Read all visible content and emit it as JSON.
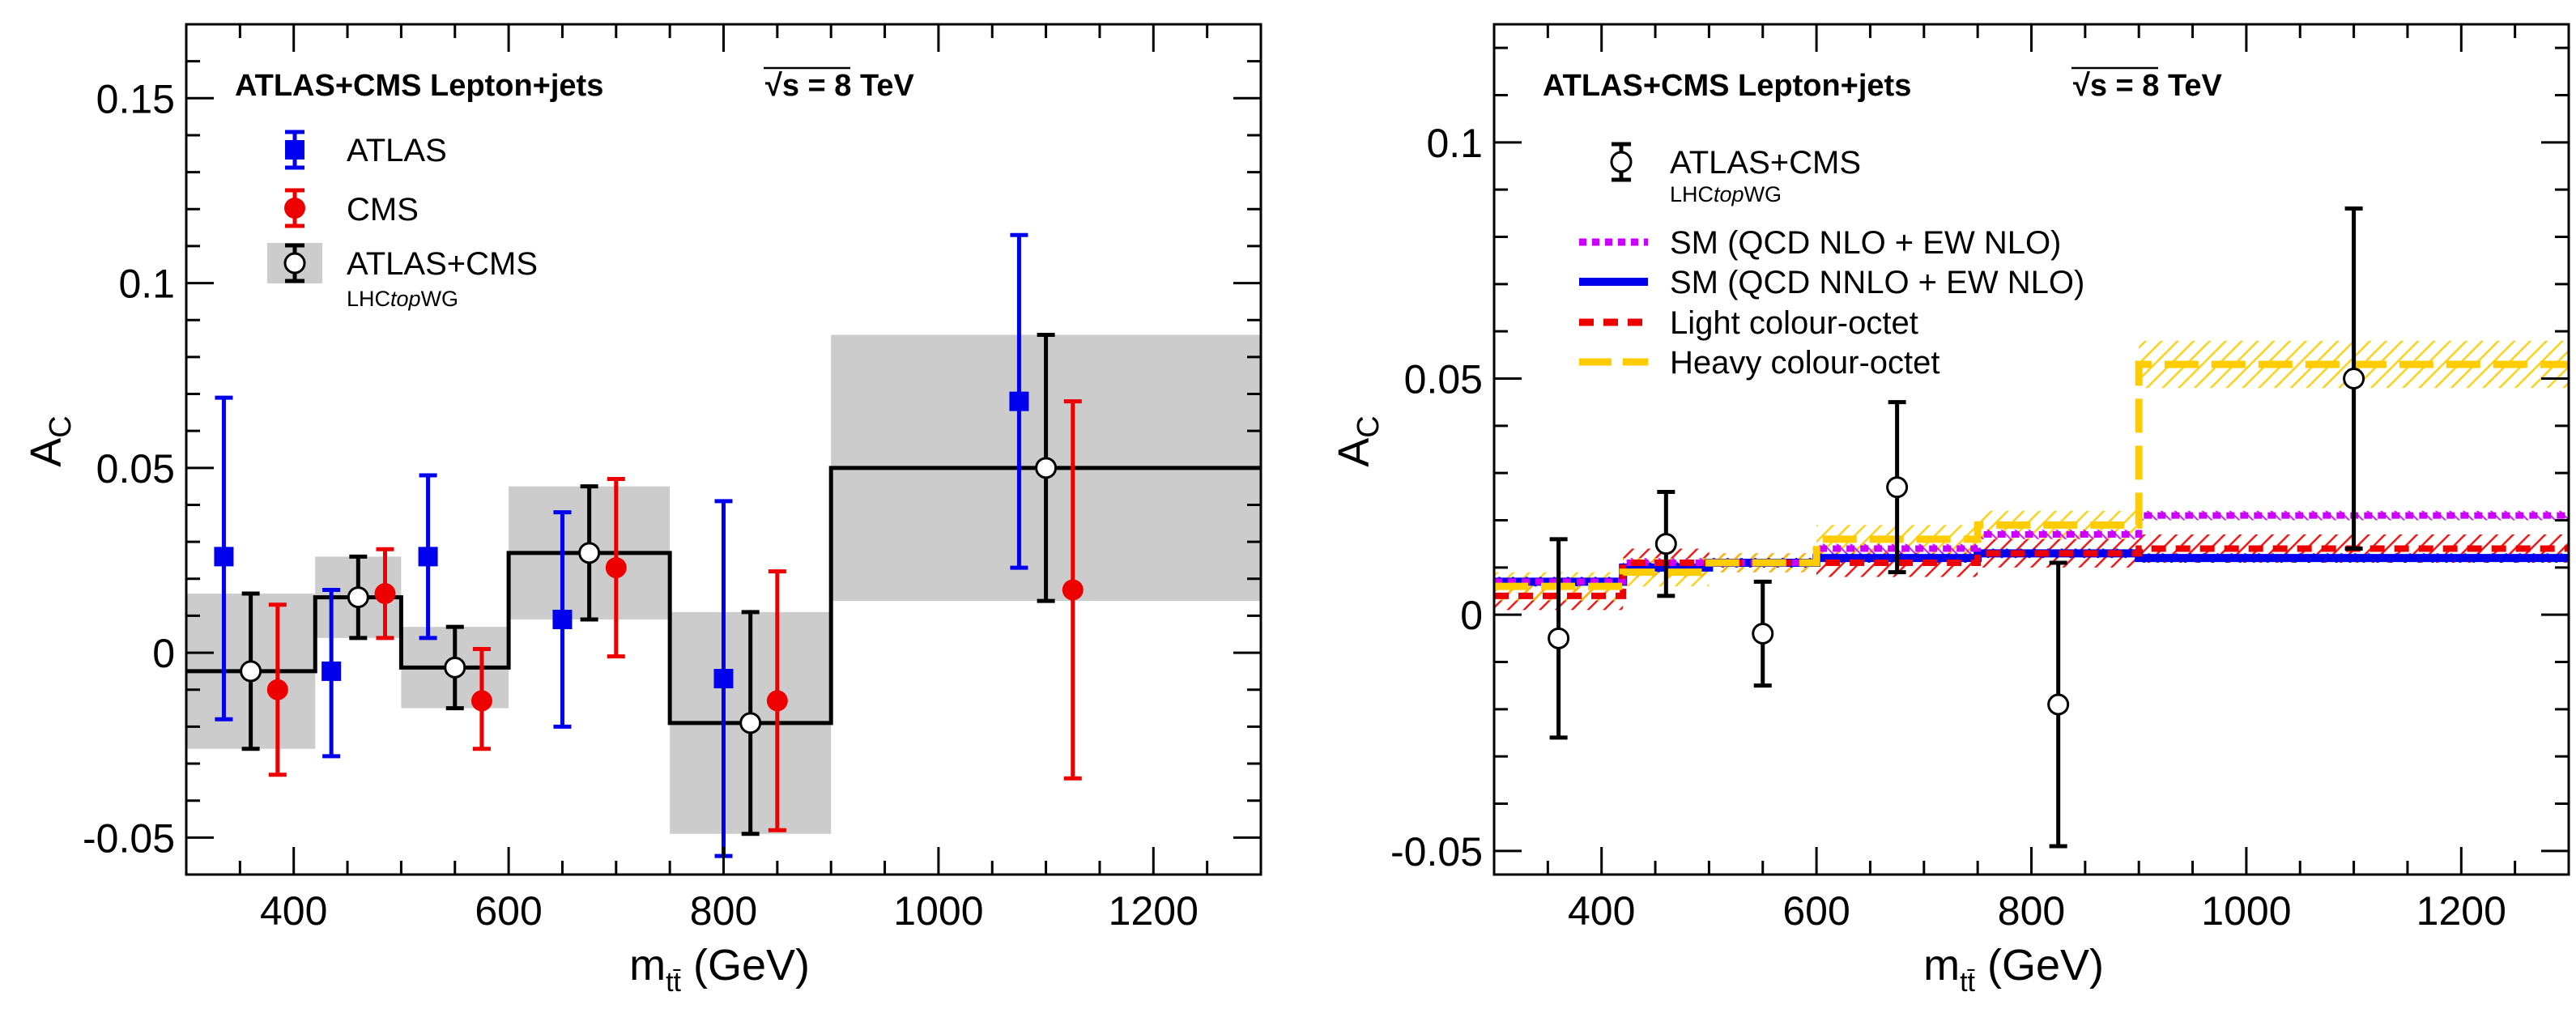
{
  "chart_data": [
    {
      "type": "scatter",
      "header": "ATLAS+CMS Lepton+jets",
      "energy": "√s = 8 TeV",
      "xlabel": "m",
      "xlabel_sub": "tt̄",
      "xlabel_unit": " (GeV)",
      "ylabel": "A",
      "ylabel_sub": "C",
      "xlim": [
        300,
        1300
      ],
      "ylim": [
        -0.06,
        0.17
      ],
      "xticks": [
        400,
        600,
        800,
        1000,
        1200
      ],
      "xtick_labels": [
        "400",
        "600",
        "800",
        "1000",
        "1200"
      ],
      "yticks": [
        -0.05,
        0,
        0.05,
        0.1,
        0.15
      ],
      "ytick_labels": [
        "-0.05",
        "0",
        "0.05",
        "0.1",
        "0.15"
      ],
      "bins": [
        {
          "lo": 300,
          "hi": 420,
          "value": -0.005,
          "band_lo": -0.026,
          "band_hi": 0.016
        },
        {
          "lo": 420,
          "hi": 500,
          "value": 0.015,
          "band_lo": 0.004,
          "band_hi": 0.026
        },
        {
          "lo": 500,
          "hi": 600,
          "value": -0.004,
          "band_lo": -0.015,
          "band_hi": 0.007
        },
        {
          "lo": 600,
          "hi": 750,
          "value": 0.027,
          "band_lo": 0.009,
          "band_hi": 0.045
        },
        {
          "lo": 750,
          "hi": 900,
          "value": -0.019,
          "band_lo": -0.049,
          "band_hi": 0.011
        },
        {
          "lo": 900,
          "hi": 1300,
          "value": 0.05,
          "band_lo": 0.014,
          "band_hi": 0.086
        }
      ],
      "series": [
        {
          "name": "ATLAS",
          "color": "#0000ee",
          "marker": "square",
          "x": [
            335,
            435,
            525,
            650,
            800,
            1075
          ],
          "y": [
            0.026,
            -0.005,
            0.026,
            0.009,
            -0.007,
            0.068
          ],
          "err_lo": [
            0.044,
            0.023,
            0.022,
            0.029,
            0.048,
            0.045
          ],
          "err_hi": [
            0.043,
            0.022,
            0.022,
            0.029,
            0.048,
            0.045
          ]
        },
        {
          "name": "CMS",
          "color": "#ee0000",
          "marker": "circle",
          "x": [
            385,
            485,
            575,
            700,
            850,
            1125
          ],
          "y": [
            -0.01,
            0.016,
            -0.013,
            0.023,
            -0.013,
            0.017
          ],
          "err_lo": [
            0.023,
            0.012,
            0.013,
            0.024,
            0.035,
            0.051
          ],
          "err_hi": [
            0.023,
            0.012,
            0.014,
            0.024,
            0.035,
            0.051
          ]
        },
        {
          "name": "ATLAS+CMS",
          "subname": "LHCtopWG",
          "color": "#000000",
          "marker": "open-circle",
          "x": [
            360,
            460,
            550,
            675,
            825,
            1100
          ],
          "y": [
            -0.005,
            0.015,
            -0.004,
            0.027,
            -0.019,
            0.05
          ],
          "err_lo": [
            0.021,
            0.011,
            0.011,
            0.018,
            0.03,
            0.036
          ],
          "err_hi": [
            0.021,
            0.011,
            0.011,
            0.018,
            0.03,
            0.036
          ]
        }
      ],
      "legend": [
        {
          "label": "ATLAS",
          "sub": ""
        },
        {
          "label": "CMS",
          "sub": ""
        },
        {
          "label": "ATLAS+CMS",
          "sub_pre": "LHC",
          "sub_it": "top",
          "sub_post": "WG"
        }
      ]
    },
    {
      "type": "scatter",
      "header": "ATLAS+CMS Lepton+jets",
      "energy": "√s = 8 TeV",
      "xlabel": "m",
      "xlabel_sub": "tt̄",
      "xlabel_unit": " (GeV)",
      "ylabel": "A",
      "ylabel_sub": "C",
      "xlim": [
        300,
        1300
      ],
      "ylim": [
        -0.055,
        0.125
      ],
      "xticks": [
        400,
        600,
        800,
        1000,
        1200
      ],
      "xtick_labels": [
        "400",
        "600",
        "800",
        "1000",
        "1200"
      ],
      "yticks": [
        -0.05,
        0,
        0.05,
        0.1
      ],
      "ytick_labels": [
        "-0.05",
        "0",
        "0.05",
        "0.1"
      ],
      "bin_edges": [
        300,
        420,
        500,
        600,
        750,
        900,
        1300
      ],
      "data": {
        "name": "ATLAS+CMS",
        "subname": "LHCtopWG",
        "x": [
          360,
          460,
          550,
          675,
          825,
          1100
        ],
        "y": [
          -0.005,
          0.015,
          -0.004,
          0.027,
          -0.019,
          0.05
        ],
        "err_lo": [
          0.021,
          0.011,
          0.011,
          0.018,
          0.03,
          0.036
        ],
        "err_hi": [
          0.021,
          0.011,
          0.011,
          0.018,
          0.03,
          0.036
        ]
      },
      "predictions": [
        {
          "name": "SM (QCD NLO + EW NLO)",
          "color": "#cc00ff",
          "style": "dotted",
          "values": [
            0.007,
            0.011,
            0.011,
            0.014,
            0.017,
            0.021
          ],
          "band": [
            0.001,
            0.001,
            0.001,
            0.001,
            0.001,
            0.001
          ]
        },
        {
          "name": "SM (QCD NNLO + EW NLO)",
          "color": "#0000ee",
          "style": "solid",
          "values": [
            0.007,
            0.01,
            0.011,
            0.012,
            0.013,
            0.012
          ],
          "band": [
            0.001,
            0.001,
            0.001,
            0.001,
            0.001,
            0.001
          ]
        },
        {
          "name": "Light colour-octet",
          "color": "#ee0000",
          "style": "dashed",
          "values": [
            0.004,
            0.011,
            0.011,
            0.011,
            0.013,
            0.014
          ],
          "band": [
            0.003,
            0.003,
            0.002,
            0.003,
            0.003,
            0.003
          ]
        },
        {
          "name": "Heavy colour-octet",
          "color": "#ffcc00",
          "style": "longdash",
          "values": [
            0.006,
            0.009,
            0.011,
            0.016,
            0.019,
            0.053
          ],
          "band": [
            0.003,
            0.003,
            0.002,
            0.003,
            0.003,
            0.005
          ]
        }
      ],
      "legend": [
        {
          "label": "ATLAS+CMS",
          "sub_pre": "LHC",
          "sub_it": "top",
          "sub_post": "WG"
        },
        {
          "label": "SM (QCD NLO + EW NLO)"
        },
        {
          "label": "SM (QCD NNLO + EW NLO)"
        },
        {
          "label": "Light colour-octet"
        },
        {
          "label": "Heavy colour-octet"
        }
      ]
    }
  ]
}
